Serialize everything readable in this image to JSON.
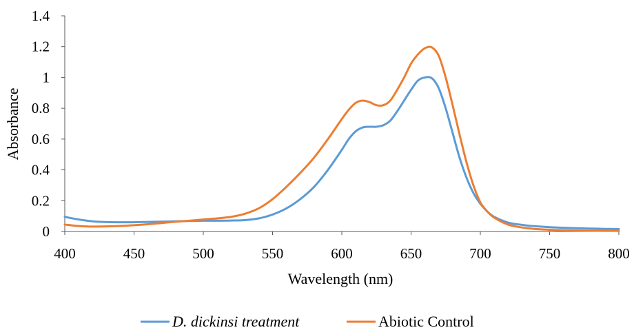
{
  "chart_data": {
    "type": "line",
    "xlabel": "Wavelength (nm)",
    "ylabel": "Absorbance",
    "xlim": [
      400,
      800
    ],
    "ylim": [
      0,
      1.4
    ],
    "x_ticks": [
      "400",
      "450",
      "500",
      "550",
      "600",
      "650",
      "700",
      "750",
      "800"
    ],
    "y_ticks": [
      "0",
      "0.2",
      "0.4",
      "0.6",
      "0.8",
      "1",
      "1.2",
      "1.4"
    ],
    "grid": false,
    "legend_position": "bottom",
    "series": [
      {
        "name": "D. dickinsi treatment",
        "color": "#5B9BD5",
        "x": [
          400,
          410,
          420,
          430,
          440,
          450,
          460,
          470,
          480,
          490,
          500,
          510,
          520,
          530,
          540,
          550,
          560,
          570,
          580,
          590,
          600,
          605,
          610,
          615,
          620,
          625,
          630,
          635,
          640,
          645,
          650,
          655,
          660,
          665,
          670,
          675,
          680,
          685,
          690,
          695,
          700,
          705,
          710,
          720,
          730,
          740,
          750,
          760,
          770,
          780,
          790,
          800
        ],
        "values": [
          0.095,
          0.078,
          0.066,
          0.061,
          0.06,
          0.06,
          0.062,
          0.064,
          0.066,
          0.068,
          0.07,
          0.07,
          0.071,
          0.074,
          0.085,
          0.11,
          0.15,
          0.21,
          0.29,
          0.4,
          0.53,
          0.6,
          0.65,
          0.675,
          0.68,
          0.68,
          0.69,
          0.72,
          0.78,
          0.85,
          0.92,
          0.98,
          1.0,
          0.995,
          0.93,
          0.8,
          0.64,
          0.48,
          0.35,
          0.25,
          0.18,
          0.13,
          0.095,
          0.058,
          0.043,
          0.034,
          0.028,
          0.024,
          0.021,
          0.019,
          0.017,
          0.016
        ]
      },
      {
        "name": "Abiotic Control",
        "color": "#ED7D31",
        "x": [
          400,
          410,
          420,
          430,
          440,
          450,
          460,
          470,
          480,
          490,
          500,
          510,
          520,
          530,
          540,
          550,
          560,
          570,
          580,
          590,
          600,
          605,
          610,
          615,
          620,
          625,
          630,
          635,
          640,
          645,
          650,
          655,
          660,
          665,
          670,
          675,
          680,
          685,
          690,
          695,
          700,
          705,
          710,
          720,
          730,
          740,
          750,
          760,
          770,
          780,
          790,
          800
        ],
        "values": [
          0.045,
          0.035,
          0.032,
          0.033,
          0.036,
          0.041,
          0.047,
          0.055,
          0.063,
          0.07,
          0.078,
          0.085,
          0.095,
          0.115,
          0.15,
          0.21,
          0.29,
          0.38,
          0.48,
          0.6,
          0.73,
          0.79,
          0.835,
          0.85,
          0.84,
          0.82,
          0.82,
          0.85,
          0.92,
          1.0,
          1.09,
          1.15,
          1.19,
          1.195,
          1.14,
          1.0,
          0.82,
          0.63,
          0.45,
          0.3,
          0.19,
          0.13,
          0.09,
          0.045,
          0.026,
          0.016,
          0.011,
          0.008,
          0.006,
          0.005,
          0.004,
          0.004
        ]
      }
    ]
  }
}
